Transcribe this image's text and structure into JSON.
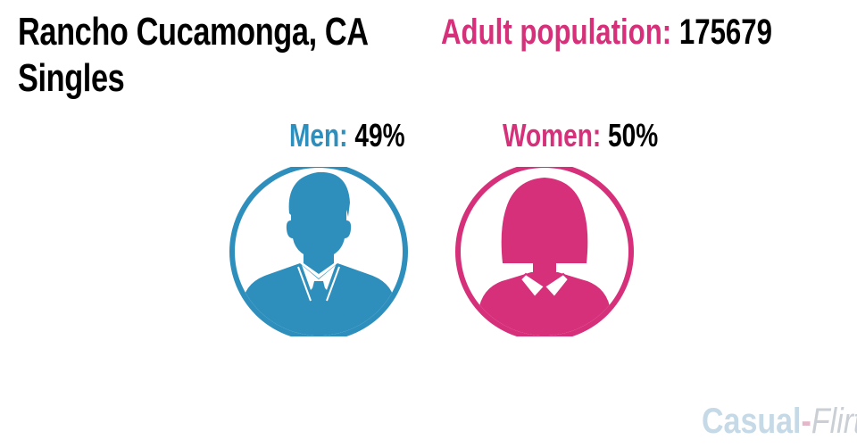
{
  "title": {
    "line1": "Rancho Cucamonga, CA",
    "line2": "Singles"
  },
  "population": {
    "label": "Adult population:",
    "value": "175679"
  },
  "men": {
    "label": "Men:",
    "value": "49%",
    "color": "#2e8fbd"
  },
  "women": {
    "label": "Women:",
    "value": "50%",
    "color": "#d6307a"
  },
  "brand": {
    "part1": "Casual",
    "separator": "-",
    "part2": "Flirt"
  }
}
